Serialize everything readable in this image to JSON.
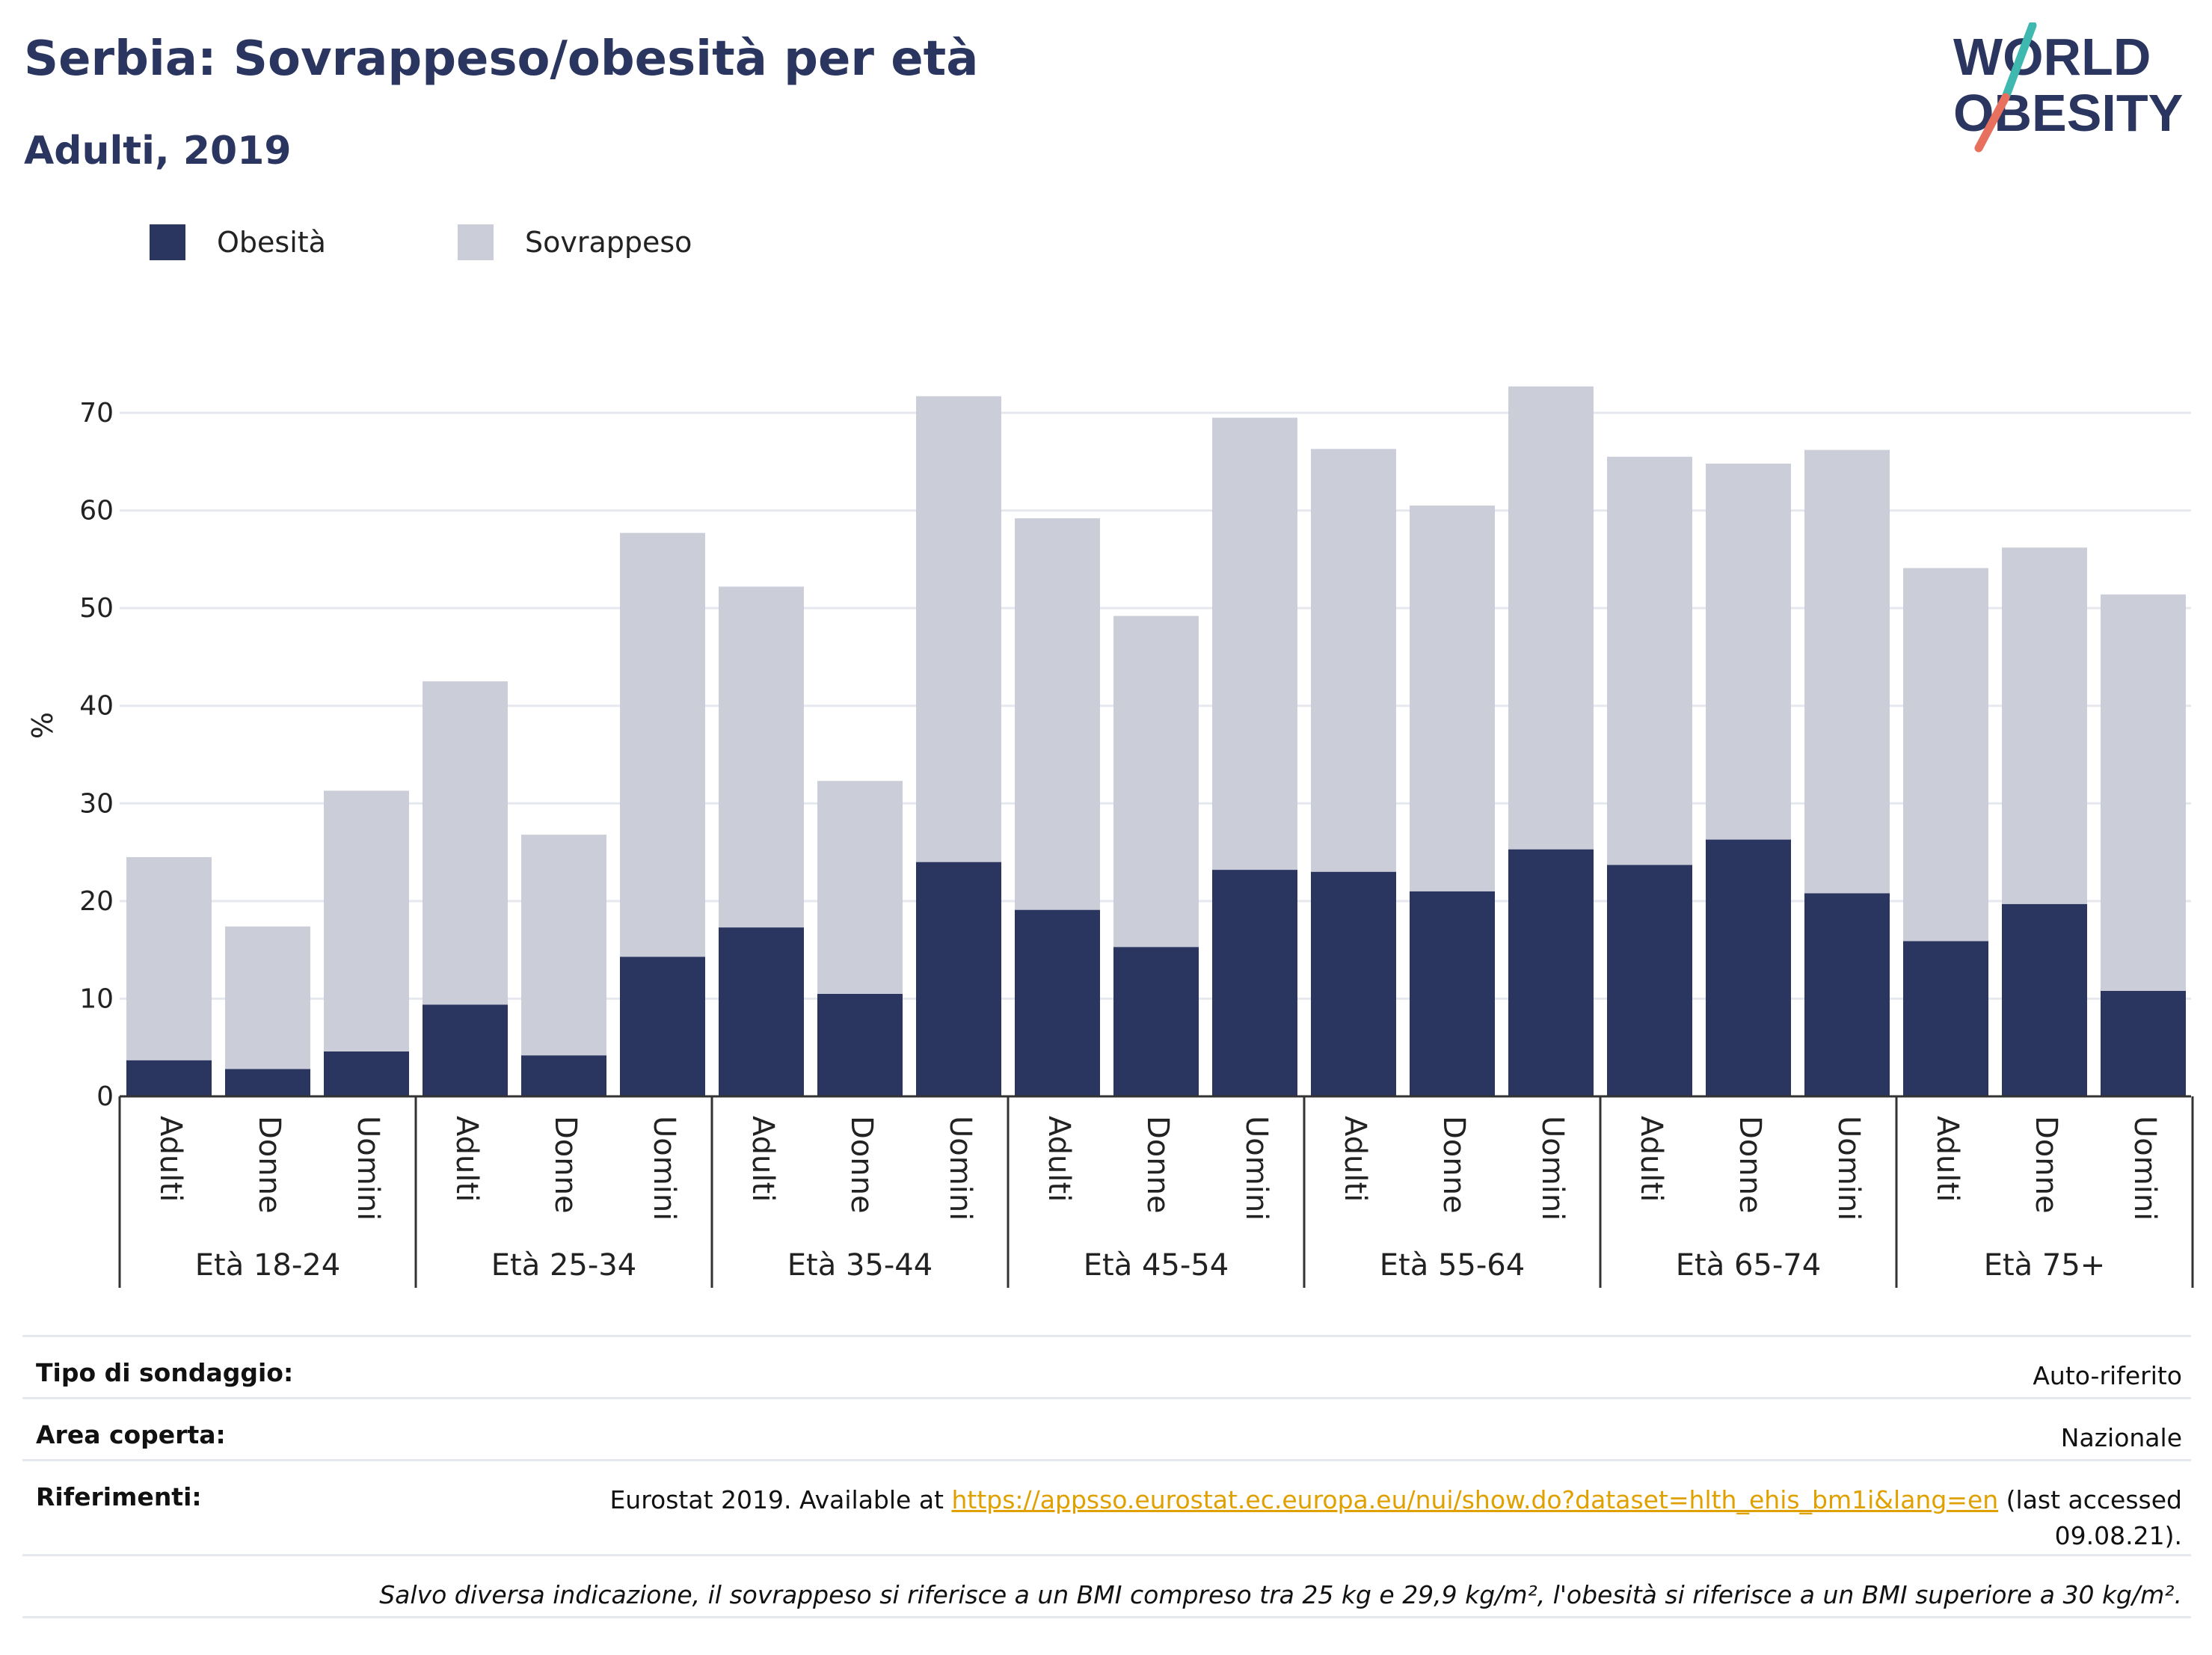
{
  "header": {
    "title": "Serbia: Sovrappeso/obesità per età",
    "subtitle": "Adulti, 2019"
  },
  "logo": {
    "line1": "WORLD",
    "line2": "OBESITY"
  },
  "colors": {
    "title": "#2a3560",
    "obesity": "#2a3560",
    "overweight": "#cbcdd9",
    "grid": "#e6e8ef",
    "logo_teal": "#3fb8b0",
    "logo_coral": "#e8705f",
    "link": "#e0a100"
  },
  "chart_data": {
    "type": "bar",
    "stacked": true,
    "ylabel": "%",
    "ylim": [
      0,
      75
    ],
    "yticks": [
      0,
      10,
      20,
      30,
      40,
      50,
      60,
      70
    ],
    "grid": true,
    "legend_position": "top-left",
    "groups": [
      "Età 18-24",
      "Età 25-34",
      "Età 35-44",
      "Età 45-54",
      "Età 55-64",
      "Età 65-74",
      "Età 75+"
    ],
    "subcategories": [
      "Adulti",
      "Donne",
      "Uomini"
    ],
    "series": [
      {
        "name": "Obesità",
        "values": [
          3.7,
          2.8,
          4.6,
          9.4,
          4.2,
          14.3,
          17.3,
          10.5,
          24.0,
          19.1,
          15.3,
          23.2,
          23.0,
          21.0,
          25.3,
          23.7,
          26.3,
          20.8,
          15.9,
          19.7,
          10.8
        ]
      },
      {
        "name": "Sovrappeso",
        "values": [
          20.8,
          14.6,
          26.7,
          33.1,
          22.6,
          43.4,
          34.9,
          21.8,
          47.7,
          40.1,
          33.9,
          46.3,
          43.3,
          39.5,
          47.4,
          41.8,
          38.5,
          45.4,
          38.2,
          36.5,
          40.6
        ]
      }
    ]
  },
  "footer": {
    "rows": [
      {
        "label": "Tipo di sondaggio:",
        "value": "Auto-riferito"
      },
      {
        "label": "Area coperta:",
        "value": "Nazionale"
      },
      {
        "label": "Riferimenti:",
        "text_before": "Eurostat 2019. Available at ",
        "link": "https://appsso.eurostat.ec.europa.eu/nui/show.do?dataset=hlth_ehis_bm1i&lang=en",
        "text_after": " (last accessed",
        "text_line2": "09.08.21)."
      }
    ],
    "note": "Salvo diversa indicazione, il sovrappeso si riferisce a un BMI compreso tra 25 kg e 29,9 kg/m², l'obesità si riferisce a un BMI superiore a 30 kg/m²."
  }
}
